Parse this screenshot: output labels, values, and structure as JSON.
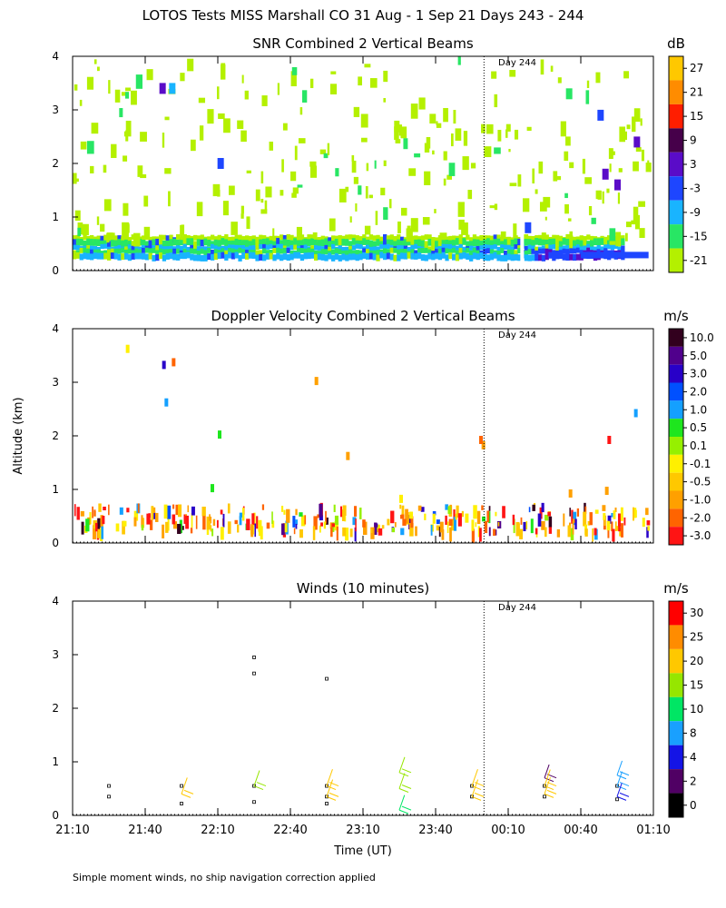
{
  "title": "LOTOS Tests MISS Marshall CO  31 Aug -  1 Sep 21 Days 243 - 244",
  "footnote": "Simple moment winds, no ship navigation correction applied",
  "shared": {
    "ylabel": "Altitude (km)",
    "xlabel": "Time (UT)",
    "x_ticks": [
      "21:10",
      "21:40",
      "22:10",
      "22:40",
      "23:10",
      "23:40",
      "00:10",
      "00:40",
      "01:10"
    ],
    "y_ticks": [
      "0",
      "1",
      "2",
      "3",
      "4"
    ],
    "day_marker_label": "Day 244",
    "day_marker_time": "00:00"
  },
  "chart_data": [
    {
      "type": "heatmap",
      "title": "SNR Combined 2 Vertical Beams",
      "ylim": [
        0,
        4
      ],
      "xlim": [
        "21:10",
        "01:10"
      ],
      "colorbar": {
        "unit": "dB",
        "labels": [
          "27",
          "21",
          "15",
          "9",
          "3",
          "-3",
          "-9",
          "-15",
          "-21"
        ],
        "colors": [
          "#ffc800",
          "#ff8c00",
          "#ff1e00",
          "#46004a",
          "#5a0cc8",
          "#1e46ff",
          "#19b4ff",
          "#28e664",
          "#b4f000"
        ]
      },
      "features": [
        {
          "band": "surface clutter layer",
          "altitude_km": [
            0.2,
            0.65
          ],
          "snr_db": [
            -15,
            3
          ]
        },
        {
          "band": "scattered echoes",
          "altitude_km": [
            0.7,
            4.0
          ],
          "snr_db": [
            -21,
            -15
          ]
        }
      ]
    },
    {
      "type": "heatmap",
      "title": "Doppler Velocity Combined 2 Vertical Beams",
      "ylim": [
        0,
        4
      ],
      "xlim": [
        "21:10",
        "01:10"
      ],
      "colorbar": {
        "unit": "m/s",
        "labels": [
          "10.0",
          "5.0",
          "3.0",
          "2.0",
          "1.0",
          "0.5",
          "0.1",
          "-0.1",
          "-0.5",
          "-1.0",
          "-2.0",
          "-3.0"
        ],
        "colors": [
          "#32001e",
          "#50008c",
          "#2800c8",
          "#0050ff",
          "#14a0ff",
          "#1ee61e",
          "#96f000",
          "#fff000",
          "#ffc800",
          "#ffa000",
          "#ff6400",
          "#ff1414"
        ]
      }
    },
    {
      "type": "scatter",
      "title": "Winds (10 minutes)",
      "ylim": [
        0,
        4
      ],
      "xlim": [
        "21:10",
        "01:10"
      ],
      "colorbar": {
        "unit": "m/s",
        "labels": [
          "30",
          "25",
          "20",
          "15",
          "10",
          "8",
          "4",
          "2",
          "0"
        ],
        "colors": [
          "#ff0000",
          "#ff8c00",
          "#ffc800",
          "#96e600",
          "#00e664",
          "#19a0ff",
          "#1414e6",
          "#500064",
          "#000000"
        ]
      },
      "points": [
        {
          "t": "21:25",
          "alt": 0.55,
          "speed": 0
        },
        {
          "t": "21:25",
          "alt": 0.35,
          "speed": 0
        },
        {
          "t": "21:55",
          "alt": 0.55,
          "speed": 0
        },
        {
          "t": "21:55",
          "alt": 0.22,
          "speed": 0
        },
        {
          "t": "22:25",
          "alt": 2.95,
          "speed": 0
        },
        {
          "t": "22:25",
          "alt": 2.65,
          "speed": 0
        },
        {
          "t": "22:25",
          "alt": 0.55,
          "speed": 0
        },
        {
          "t": "22:25",
          "alt": 0.25,
          "speed": 0
        },
        {
          "t": "22:55",
          "alt": 2.55,
          "speed": 0
        },
        {
          "t": "22:55",
          "alt": 0.55,
          "speed": 0
        },
        {
          "t": "22:55",
          "alt": 0.35,
          "speed": 0
        },
        {
          "t": "22:55",
          "alt": 0.22,
          "speed": 0
        },
        {
          "t": "23:55",
          "alt": 0.55,
          "speed": 0
        },
        {
          "t": "23:55",
          "alt": 0.35,
          "speed": 0
        },
        {
          "t": "00:25",
          "alt": 0.55,
          "speed": 0
        },
        {
          "t": "00:25",
          "alt": 0.35,
          "speed": 0
        },
        {
          "t": "00:55",
          "alt": 0.55,
          "speed": 0
        },
        {
          "t": "00:55",
          "alt": 0.3,
          "speed": 0
        }
      ],
      "barbs": [
        {
          "t": "21:55",
          "alt": 0.4,
          "speed": 20
        },
        {
          "t": "22:25",
          "alt": 0.55,
          "speed": 15
        },
        {
          "t": "22:55",
          "alt": 0.55,
          "speed": 22
        },
        {
          "t": "22:55",
          "alt": 0.35,
          "speed": 24
        },
        {
          "t": "23:25",
          "alt": 0.8,
          "speed": 15
        },
        {
          "t": "23:25",
          "alt": 0.5,
          "speed": 15
        },
        {
          "t": "23:25",
          "alt": 0.1,
          "speed": 12
        },
        {
          "t": "23:55",
          "alt": 0.55,
          "speed": 22
        },
        {
          "t": "23:55",
          "alt": 0.35,
          "speed": 24
        },
        {
          "t": "00:25",
          "alt": 0.7,
          "speed": 3
        },
        {
          "t": "00:25",
          "alt": 0.55,
          "speed": 20
        },
        {
          "t": "00:25",
          "alt": 0.4,
          "speed": 22
        },
        {
          "t": "00:55",
          "alt": 0.75,
          "speed": 9
        },
        {
          "t": "00:55",
          "alt": 0.55,
          "speed": 9
        },
        {
          "t": "00:55",
          "alt": 0.35,
          "speed": 4
        }
      ]
    }
  ]
}
